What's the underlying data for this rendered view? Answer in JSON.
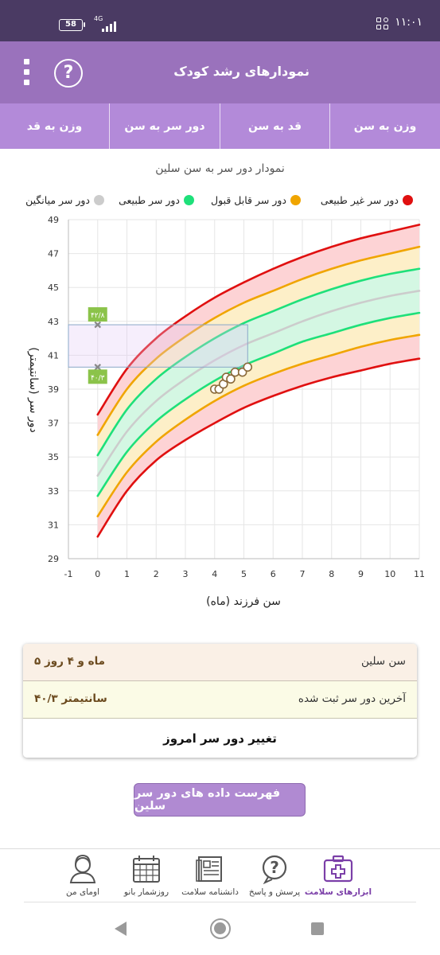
{
  "status_bar": {
    "time": "۱۱:۰۱",
    "battery": "58",
    "network": "4G"
  },
  "header": {
    "title": "نمودارهای رشد کودک",
    "menu_icon": "kebab-menu-icon",
    "help_icon": "help-icon",
    "help_glyph": "?"
  },
  "tabs": [
    {
      "label": "وزن به سن",
      "active": false
    },
    {
      "label": "قد به سن",
      "active": false
    },
    {
      "label": "دور سر به سن",
      "active": true
    },
    {
      "label": "وزن به قد",
      "active": false
    }
  ],
  "chart_title": "نمودار دور سر به سن سلین",
  "legend": [
    {
      "label": "دور سر غیر طبیعی",
      "color": "#e01010"
    },
    {
      "label": "دور سر قابل قبول",
      "color": "#f0a500"
    },
    {
      "label": "دور سر طبیعی",
      "color": "#1ee07a"
    },
    {
      "label": "دور سر میانگین",
      "color": "#cccccc"
    }
  ],
  "chart_data": {
    "type": "line",
    "title": "نمودار دور سر به سن سلین",
    "xlabel": "سن فرزند (ماه)",
    "ylabel": "دور سر (سانتیمتر)",
    "xlim": [
      -1,
      11
    ],
    "ylim": [
      29,
      49
    ],
    "x_ticks": [
      "-1",
      "0",
      "1",
      "2",
      "3",
      "4",
      "5",
      "6",
      "7",
      "8",
      "9",
      "10",
      "11"
    ],
    "y_ticks": [
      "29",
      "31",
      "33",
      "35",
      "37",
      "39",
      "41",
      "43",
      "45",
      "47",
      "49"
    ],
    "grid": true,
    "x": [
      0,
      1,
      2,
      3,
      4,
      5,
      6,
      7,
      8,
      9,
      10,
      11
    ],
    "series": [
      {
        "name": "دور سر غیر طبیعی",
        "color": "#e01010",
        "values": [
          37.5,
          40.2,
          42.0,
          43.3,
          44.4,
          45.3,
          46.1,
          46.8,
          47.4,
          47.9,
          48.3,
          48.7
        ]
      },
      {
        "name": "دور سر قابل قبول",
        "color": "#f0a500",
        "values": [
          36.3,
          39.0,
          40.8,
          42.1,
          43.2,
          44.1,
          44.8,
          45.5,
          46.1,
          46.6,
          47.0,
          47.4
        ]
      },
      {
        "name": "دور سر طبیعی",
        "color": "#1ee07a",
        "values": [
          35.1,
          37.8,
          39.6,
          40.9,
          42.0,
          42.9,
          43.6,
          44.3,
          44.9,
          45.4,
          45.8,
          46.1
        ]
      },
      {
        "name": "دور سر میانگین",
        "color": "#cccccc",
        "values": [
          33.9,
          36.5,
          38.3,
          39.6,
          40.7,
          41.6,
          42.3,
          43.0,
          43.6,
          44.1,
          44.5,
          44.8
        ]
      },
      {
        "name": "دور سر طبیعی",
        "color": "#1ee07a",
        "values": [
          32.7,
          35.3,
          37.1,
          38.4,
          39.5,
          40.4,
          41.1,
          41.8,
          42.3,
          42.8,
          43.2,
          43.5
        ]
      },
      {
        "name": "دور سر قابل قبول",
        "color": "#f0a500",
        "values": [
          31.5,
          34.1,
          35.9,
          37.2,
          38.3,
          39.2,
          39.9,
          40.5,
          41.0,
          41.5,
          41.9,
          42.2
        ]
      },
      {
        "name": "دور سر غیر طبیعی",
        "color": "#e01010",
        "values": [
          30.3,
          33.0,
          34.8,
          36.0,
          37.0,
          37.9,
          38.6,
          39.2,
          39.7,
          40.1,
          40.5,
          40.8
        ]
      }
    ],
    "child_points": {
      "x": [
        4.0,
        4.15,
        4.3,
        4.4,
        4.55,
        4.7,
        4.95,
        5.13
      ],
      "y": [
        39.0,
        39.0,
        39.3,
        39.7,
        39.6,
        40.0,
        40.0,
        40.3
      ]
    },
    "highlight_box": {
      "x": [
        -1,
        5.13
      ],
      "y": [
        40.3,
        42.8
      ]
    },
    "range_markers": [
      {
        "x": 0,
        "y": 42.8,
        "label": "۴۲/۸"
      },
      {
        "x": 0,
        "y": 40.3,
        "label": "۴۰/۳"
      }
    ]
  },
  "info": {
    "age_label": "سن سلین",
    "age_value": "۵ ماه و ۴ روز",
    "last_label": "آخرین دور سر ثبت شده",
    "last_value": "۴۰/۳ سانتیمتر",
    "change_button": "تغییر دور سر امروز"
  },
  "list_button": "فهرست داده های دور سر سلین",
  "bottom_nav": [
    {
      "label": "ابزارهای سلامت",
      "icon": "health-kit-icon",
      "active": true
    },
    {
      "label": "پرسش و پاسخ",
      "icon": "question-bubble-icon",
      "active": false
    },
    {
      "label": "دانشنامه سلامت",
      "icon": "encyclopedia-icon",
      "active": false
    },
    {
      "label": "روزشمار بانو",
      "icon": "calendar-icon",
      "active": false
    },
    {
      "label": "اومای من",
      "icon": "profile-icon",
      "active": false
    }
  ]
}
